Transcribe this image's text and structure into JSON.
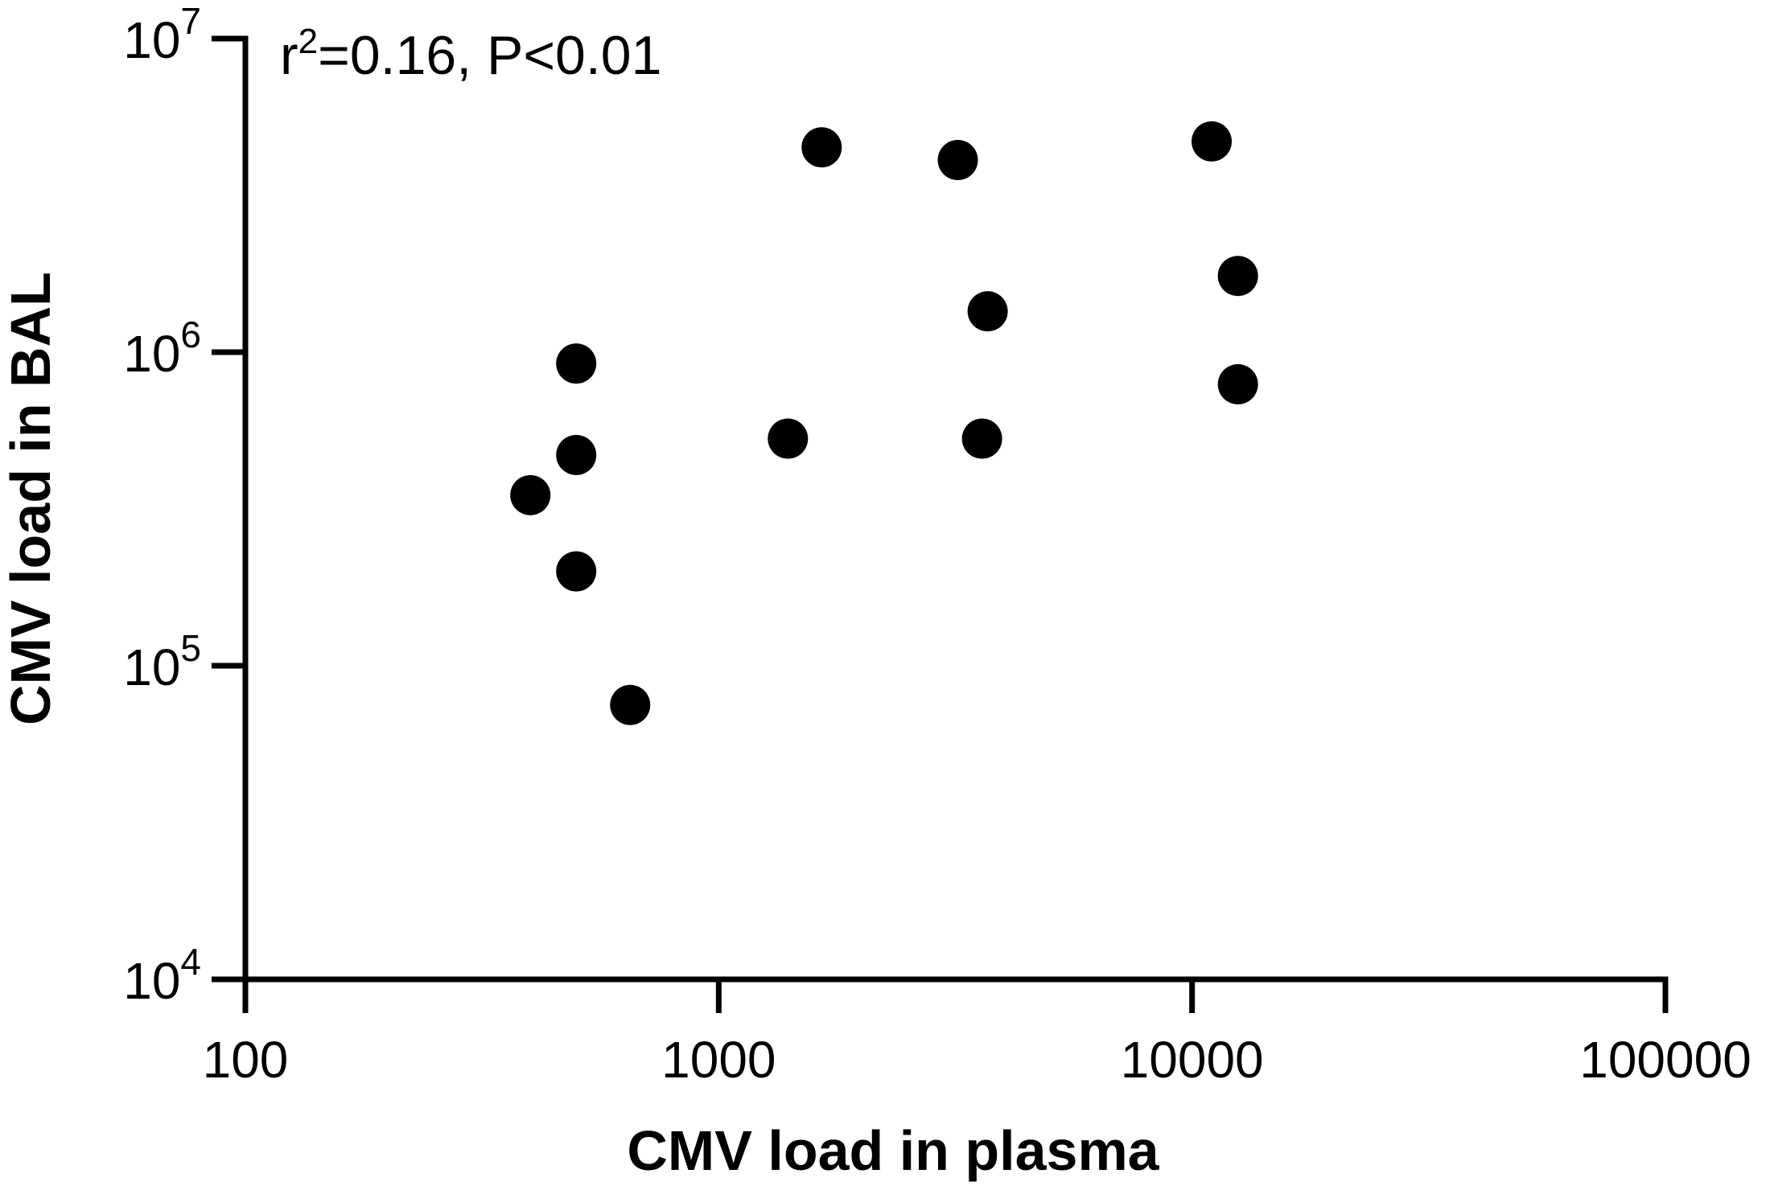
{
  "chart_data": {
    "type": "scatter",
    "title": "",
    "xlabel": "CMV load in plasma",
    "ylabel": "CMV load in BAL",
    "x_scale": "log",
    "y_scale": "log",
    "xlim": [
      100,
      100000
    ],
    "ylim": [
      10000,
      10000000
    ],
    "x_ticks": [
      {
        "value": 100,
        "label": "100"
      },
      {
        "value": 1000,
        "label": "1000"
      },
      {
        "value": 10000,
        "label": "10000"
      },
      {
        "value": 100000,
        "label": "100000"
      }
    ],
    "y_ticks": [
      {
        "value": 10000,
        "base": "10",
        "exp": "4"
      },
      {
        "value": 100000,
        "base": "10",
        "exp": "5"
      },
      {
        "value": 1000000,
        "base": "10",
        "exp": "6"
      },
      {
        "value": 10000000,
        "base": "10",
        "exp": "7"
      }
    ],
    "annotation": {
      "prefix": "r",
      "sup": "2",
      "rest": "=0.16, P<0.01"
    },
    "grid": false,
    "marker_color": "#000000",
    "points": [
      {
        "x": 400,
        "y": 350000
      },
      {
        "x": 500,
        "y": 920000
      },
      {
        "x": 500,
        "y": 470000
      },
      {
        "x": 500,
        "y": 200000
      },
      {
        "x": 650,
        "y": 75000
      },
      {
        "x": 1400,
        "y": 530000
      },
      {
        "x": 1650,
        "y": 4500000
      },
      {
        "x": 3200,
        "y": 4100000
      },
      {
        "x": 3600,
        "y": 530000
      },
      {
        "x": 3700,
        "y": 1350000
      },
      {
        "x": 11000,
        "y": 4700000
      },
      {
        "x": 12500,
        "y": 1750000
      },
      {
        "x": 12500,
        "y": 790000
      }
    ]
  }
}
